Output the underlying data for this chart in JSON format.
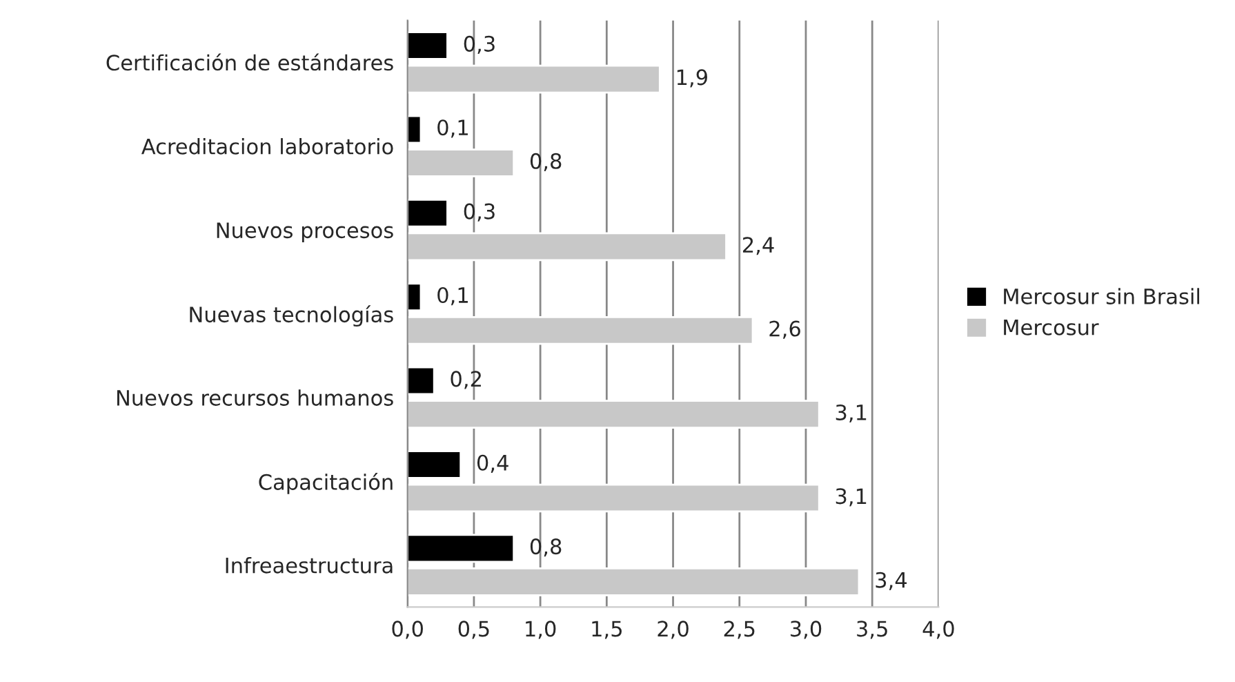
{
  "chart_data": {
    "type": "bar",
    "orientation": "horizontal",
    "categories": [
      "Certificación de estándares",
      "Acreditacion laboratorio",
      "Nuevos procesos",
      "Nuevas tecnologías",
      "Nuevos recursos humanos",
      "Capacitación",
      "Infreaestructura"
    ],
    "series": [
      {
        "name": "Mercosur sin Brasil",
        "color": "#000000",
        "values": [
          0.3,
          0.1,
          0.3,
          0.1,
          0.2,
          0.4,
          0.8
        ],
        "value_labels": [
          "0,3",
          "0,1",
          "0,3",
          "0,1",
          "0,2",
          "0,4",
          "0,8"
        ]
      },
      {
        "name": "Mercosur",
        "color": "#c8c8c8",
        "values": [
          1.9,
          0.8,
          2.4,
          2.6,
          3.1,
          3.1,
          3.4
        ],
        "value_labels": [
          "1,9",
          "0,8",
          "2,4",
          "2,6",
          "3,1",
          "3,1",
          "3,4"
        ]
      }
    ],
    "xlim": [
      0,
      4
    ],
    "xticks": [
      {
        "value": 0,
        "label": "0,0"
      },
      {
        "value": 0.5,
        "label": "0,5"
      },
      {
        "value": 1,
        "label": "1,0"
      },
      {
        "value": 1.5,
        "label": "1,5"
      },
      {
        "value": 2,
        "label": "2,0"
      },
      {
        "value": 2.5,
        "label": "2,5"
      },
      {
        "value": 3,
        "label": "3,0"
      },
      {
        "value": 3.5,
        "label": "3,5"
      },
      {
        "value": 4,
        "label": "4,0"
      }
    ],
    "grid": "x",
    "legend": "right"
  }
}
